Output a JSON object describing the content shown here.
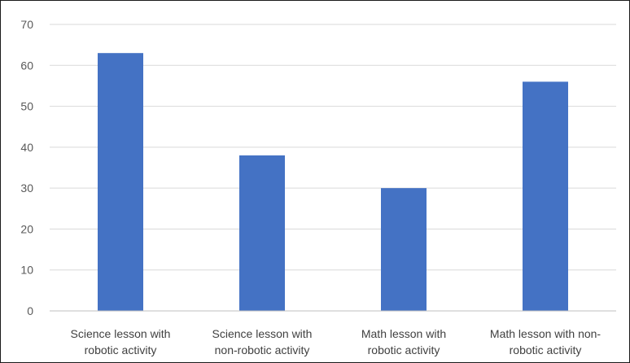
{
  "chart_data": {
    "type": "bar",
    "categories": [
      [
        "Science lesson with",
        "robotic activity"
      ],
      [
        "Science lesson with",
        "non-robotic activity"
      ],
      [
        "Math lesson with",
        "robotic activity"
      ],
      [
        "Math lesson with non-",
        "robotic activity"
      ]
    ],
    "values": [
      63,
      38,
      30,
      56
    ],
    "title": "",
    "xlabel": "",
    "ylabel": "",
    "ylim": [
      0,
      70
    ],
    "yticks": [
      0,
      10,
      20,
      30,
      40,
      50,
      60,
      70
    ],
    "grid": true,
    "legend": "none",
    "colors": {
      "bar": "#4472C4",
      "grid": "#D9D9D9",
      "axis": "#BFBFBF"
    }
  }
}
